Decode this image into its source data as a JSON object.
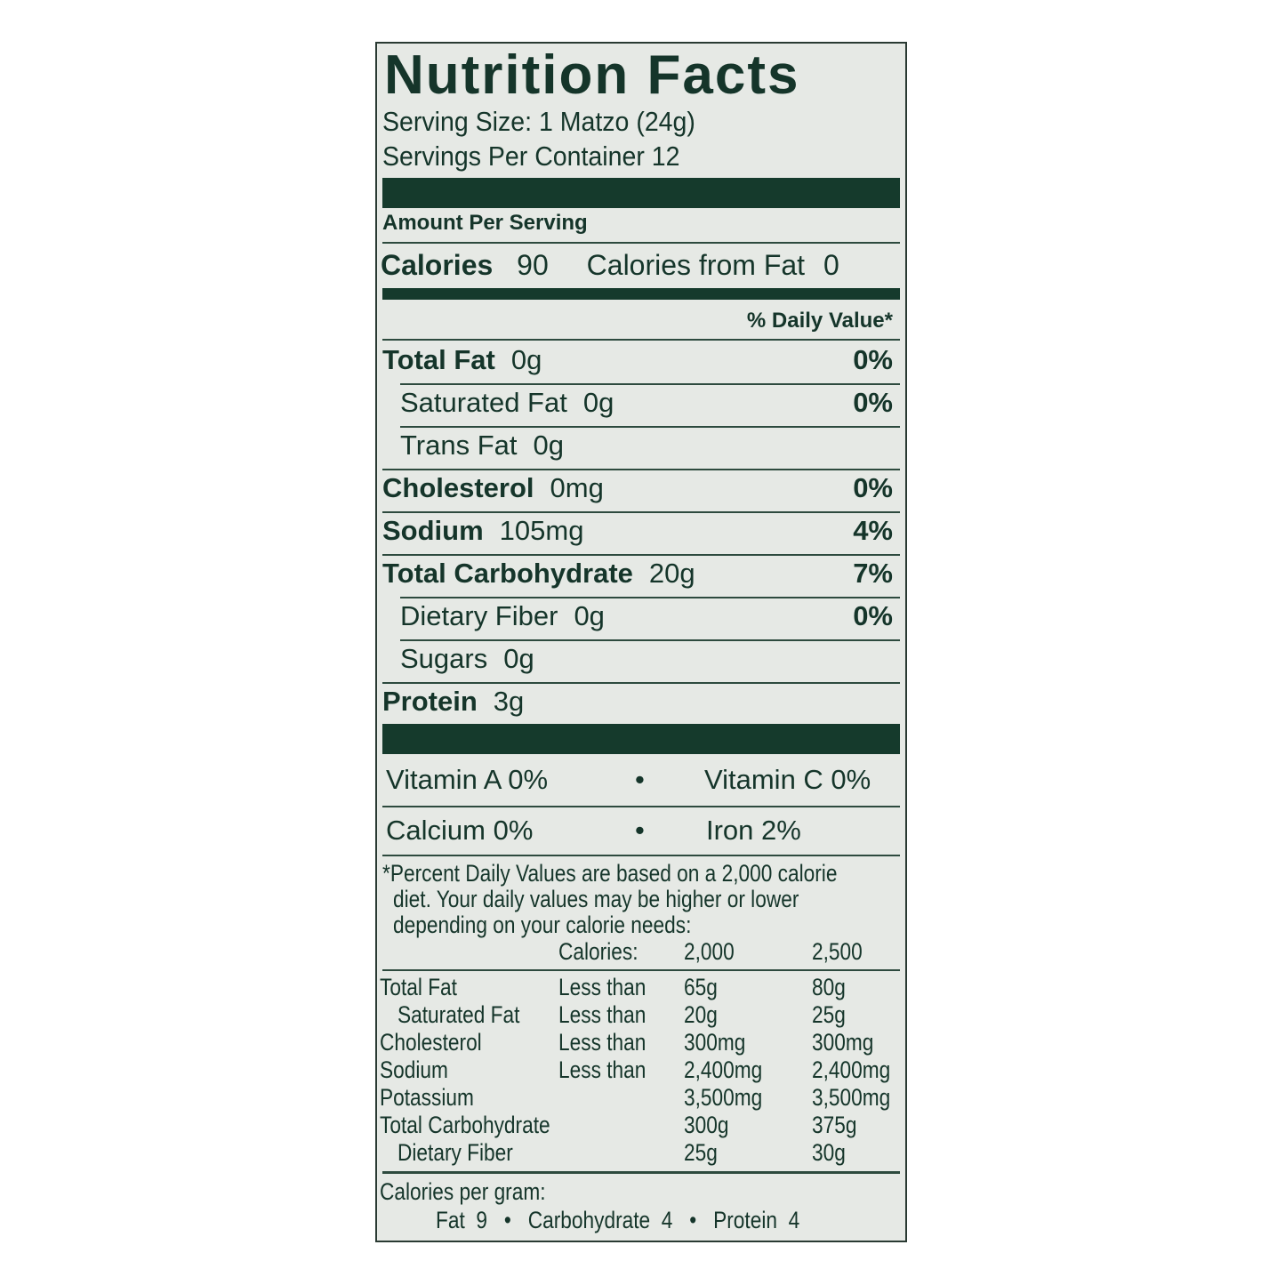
{
  "title": "Nutrition Facts",
  "serving_size": "Serving Size:  1 Matzo (24g)",
  "servings_per_container": "Servings Per Container  12",
  "amount_per_serving": "Amount Per Serving",
  "calories": {
    "label": "Calories",
    "value": "90",
    "from_fat_label": "Calories from Fat",
    "from_fat_value": "0"
  },
  "daily_value_header": "% Daily Value*",
  "nutrients": [
    {
      "name": "Total Fat",
      "amount": "0g",
      "dv": "0%"
    },
    {
      "name": "Saturated Fat",
      "amount": "0g",
      "dv": "0%"
    },
    {
      "name": "Trans Fat",
      "amount": "0g",
      "dv": ""
    },
    {
      "name": "Cholesterol",
      "amount": "0mg",
      "dv": "0%"
    },
    {
      "name": "Sodium",
      "amount": "105mg",
      "dv": "4%"
    },
    {
      "name": "Total Carbohydrate",
      "amount": "20g",
      "dv": "7%"
    },
    {
      "name": "Dietary Fiber",
      "amount": "0g",
      "dv": "0%"
    },
    {
      "name": "Sugars",
      "amount": "0g",
      "dv": ""
    },
    {
      "name": "Protein",
      "amount": "3g",
      "dv": ""
    }
  ],
  "vitamins": [
    {
      "left": "Vitamin A  0%",
      "right": "Vitamin C  0%"
    },
    {
      "left": "Calcium  0%",
      "right": "Iron  2%"
    }
  ],
  "footnote": [
    "*Percent Daily Values are based on a 2,000 calorie",
    "diet. Your daily values may be higher or lower",
    "depending on your calorie needs:"
  ],
  "reference_table": {
    "header": [
      "Calories:",
      "2,000",
      "2,500"
    ],
    "rows": [
      [
        "Total Fat",
        "Less than",
        "65g",
        "80g"
      ],
      [
        "Saturated Fat",
        "Less than",
        "20g",
        "25g"
      ],
      [
        "Cholesterol",
        "Less than",
        "300mg",
        "300mg"
      ],
      [
        "Sodium",
        "Less than",
        "2,400mg",
        "2,400mg"
      ],
      [
        "Potassium",
        "",
        "3,500mg",
        "3,500mg"
      ],
      [
        "Total Carbohydrate",
        "",
        "300g",
        "375g"
      ],
      [
        "Dietary Fiber",
        "",
        "25g",
        "30g"
      ]
    ]
  },
  "calories_per_gram": {
    "label": "Calories per gram:",
    "values": "Fat  9   •   Carbohydrate  4   •   Protein  4"
  },
  "colors": {
    "ink": "#15352a",
    "background": "#e6e9e5"
  }
}
